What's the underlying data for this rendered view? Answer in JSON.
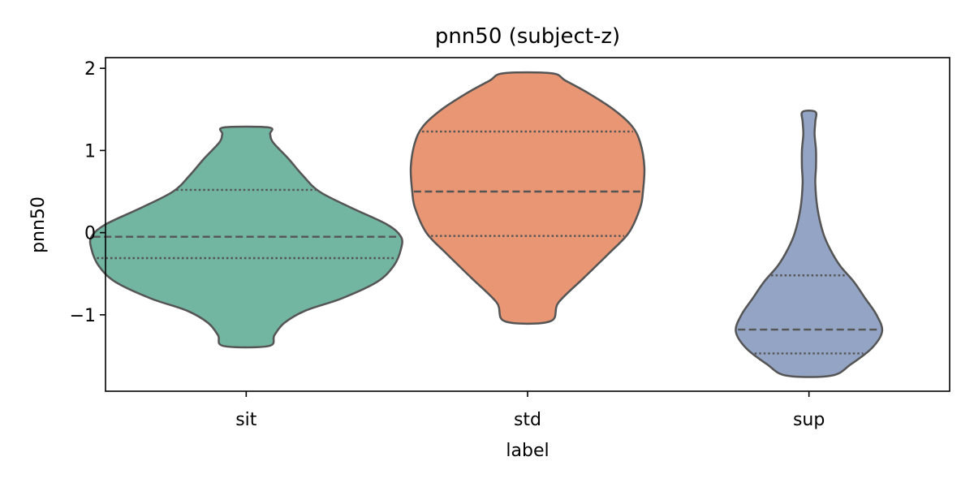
{
  "chart_data": {
    "type": "violin",
    "title": "pnn50 (subject-z)",
    "xlabel": "label",
    "ylabel": "pnn50",
    "categories": [
      "sit",
      "std",
      "sup"
    ],
    "ylim": [
      -1.93,
      2.13
    ],
    "yticks": [
      {
        "value": -1,
        "label": "−1"
      },
      {
        "value": 0,
        "label": "0"
      },
      {
        "value": 1,
        "label": "1"
      },
      {
        "value": 2,
        "label": "2"
      }
    ],
    "colors": [
      "#72b5a0",
      "#e89674",
      "#94a4c5"
    ],
    "violins": [
      {
        "label": "sit",
        "min": -1.38,
        "max": 1.28,
        "q1": -0.31,
        "median": -0.05,
        "q3": 0.52,
        "profile": [
          [
            -1.38,
            0.16
          ],
          [
            -1.25,
            0.2
          ],
          [
            -1.1,
            0.27
          ],
          [
            -0.95,
            0.42
          ],
          [
            -0.8,
            0.68
          ],
          [
            -0.6,
            0.93
          ],
          [
            -0.4,
            1.05
          ],
          [
            -0.2,
            1.1
          ],
          [
            -0.05,
            1.1
          ],
          [
            0.1,
            1.0
          ],
          [
            0.3,
            0.75
          ],
          [
            0.5,
            0.52
          ],
          [
            0.7,
            0.4
          ],
          [
            0.9,
            0.3
          ],
          [
            1.1,
            0.19
          ],
          [
            1.2,
            0.17
          ],
          [
            1.28,
            0.16
          ]
        ]
      },
      {
        "label": "std",
        "min": -1.08,
        "max": 1.94,
        "q1": -0.04,
        "median": 0.5,
        "q3": 1.23,
        "profile": [
          [
            -1.08,
            0.16
          ],
          [
            -0.85,
            0.22
          ],
          [
            -0.55,
            0.4
          ],
          [
            -0.25,
            0.58
          ],
          [
            0.0,
            0.72
          ],
          [
            0.3,
            0.8
          ],
          [
            0.5,
            0.82
          ],
          [
            0.8,
            0.83
          ],
          [
            1.1,
            0.8
          ],
          [
            1.3,
            0.74
          ],
          [
            1.5,
            0.61
          ],
          [
            1.7,
            0.43
          ],
          [
            1.85,
            0.27
          ],
          [
            1.94,
            0.17
          ]
        ]
      },
      {
        "label": "sup",
        "min": -1.74,
        "max": 1.47,
        "q1": -1.47,
        "median": -1.18,
        "q3": -0.52,
        "profile": [
          [
            -1.74,
            0.16
          ],
          [
            -1.6,
            0.3
          ],
          [
            -1.4,
            0.45
          ],
          [
            -1.2,
            0.52
          ],
          [
            -1.0,
            0.48
          ],
          [
            -0.8,
            0.4
          ],
          [
            -0.6,
            0.32
          ],
          [
            -0.4,
            0.22
          ],
          [
            -0.2,
            0.15
          ],
          [
            0.0,
            0.1
          ],
          [
            0.3,
            0.06
          ],
          [
            0.6,
            0.045
          ],
          [
            0.8,
            0.05
          ],
          [
            1.0,
            0.05
          ],
          [
            1.2,
            0.04
          ],
          [
            1.35,
            0.045
          ],
          [
            1.47,
            0.046
          ]
        ]
      }
    ]
  }
}
